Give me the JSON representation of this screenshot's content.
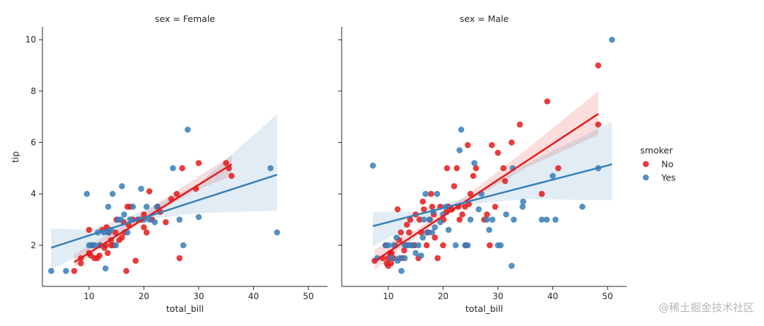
{
  "chart_data": {
    "type": "scatter",
    "y_label": "tip",
    "y_lim": [
      0.4,
      10.5
    ],
    "y_ticks": [
      2,
      4,
      6,
      8,
      10
    ],
    "x_lim": [
      1.5,
      53.5
    ],
    "x_ticks": [
      10,
      20,
      30,
      40,
      50
    ],
    "legend": {
      "title": "smoker",
      "entries": [
        {
          "label": "No",
          "color": "#e41a1c"
        },
        {
          "label": "Yes",
          "color": "#377eb8"
        }
      ],
      "position": "right"
    },
    "facets": [
      {
        "title": "sex = Female",
        "x_label": "total_bill",
        "series": [
          {
            "name": "No",
            "color": "#e41a1c",
            "points": [
              [
                7.3,
                1
              ],
              [
                8.5,
                1.3
              ],
              [
                8.5,
                1.5
              ],
              [
                10,
                1.7
              ],
              [
                10,
                2.6
              ],
              [
                10.3,
                1.6
              ],
              [
                10.5,
                2
              ],
              [
                11,
                1.5
              ],
              [
                11.5,
                1.5
              ],
              [
                11.9,
                1.6
              ],
              [
                12,
                2
              ],
              [
                12.4,
                2.6
              ],
              [
                12.8,
                1.9
              ],
              [
                13,
                2
              ],
              [
                13.2,
                2.7
              ],
              [
                13.4,
                1.7
              ],
              [
                13.6,
                2.5
              ],
              [
                14,
                2
              ],
              [
                14,
                2.2
              ],
              [
                14.5,
                2
              ],
              [
                14.8,
                2.5
              ],
              [
                15,
                3
              ],
              [
                15.5,
                2.2
              ],
              [
                16,
                2.3
              ],
              [
                16.3,
                2.9
              ],
              [
                16.5,
                2.5
              ],
              [
                16.8,
                1
              ],
              [
                17,
                3.5
              ],
              [
                17.2,
                2.8
              ],
              [
                17.5,
                3.5
              ],
              [
                18,
                3
              ],
              [
                18.5,
                1.4
              ],
              [
                18.9,
                3
              ],
              [
                19.5,
                3
              ],
              [
                20,
                3.2
              ],
              [
                20,
                2.7
              ],
              [
                20.5,
                2.5
              ],
              [
                21,
                4.1
              ],
              [
                21.5,
                3
              ],
              [
                22.5,
                3.5
              ],
              [
                23,
                3.3
              ],
              [
                24,
                2.9
              ],
              [
                25,
                3.8
              ],
              [
                26,
                4
              ],
              [
                26.5,
                1.5
              ],
              [
                27,
                5
              ],
              [
                29.5,
                4.2
              ],
              [
                30,
                5.2
              ],
              [
                35,
                5.2
              ],
              [
                35.5,
                5
              ],
              [
                36,
                4.7
              ]
            ],
            "fit": {
              "x_range": [
                7.3,
                36
              ],
              "slope": 0.1327,
              "intercept": 0.375
            },
            "ci": [
              [
                7.3,
                1.15,
                1.65
              ],
              [
                15,
                2.3,
                2.6
              ],
              [
                22,
                3.2,
                3.55
              ],
              [
                29,
                4.1,
                4.55
              ],
              [
                36,
                4.7,
                5.5
              ]
            ]
          },
          {
            "name": "Yes",
            "color": "#377eb8",
            "points": [
              [
                3.1,
                1
              ],
              [
                5.8,
                1
              ],
              [
                9.6,
                4
              ],
              [
                10,
                2
              ],
              [
                10.6,
                2
              ],
              [
                11,
                2
              ],
              [
                11.6,
                2.5
              ],
              [
                12,
                2
              ],
              [
                12.7,
                2.5
              ],
              [
                13,
                1.1
              ],
              [
                13.5,
                3.5
              ],
              [
                13.5,
                2.5
              ],
              [
                14,
                2.6
              ],
              [
                14.3,
                4
              ],
              [
                14.9,
                2
              ],
              [
                15.3,
                3
              ],
              [
                15.8,
                3
              ],
              [
                16,
                4.3
              ],
              [
                16.4,
                3.2
              ],
              [
                17,
                2.5
              ],
              [
                17.5,
                3
              ],
              [
                18,
                3.5
              ],
              [
                19,
                3
              ],
              [
                19.5,
                4.2
              ],
              [
                20,
                3
              ],
              [
                20.5,
                3.5
              ],
              [
                21,
                3
              ],
              [
                22,
                2.9
              ],
              [
                22.4,
                3.5
              ],
              [
                25.3,
                5
              ],
              [
                26.5,
                3
              ],
              [
                27.2,
                2
              ],
              [
                28,
                6.5
              ],
              [
                30,
                3.1
              ],
              [
                43.1,
                5
              ],
              [
                44.3,
                2.5
              ]
            ],
            "fit": {
              "x_range": [
                3.1,
                44.3
              ],
              "slope": 0.069,
              "intercept": 1.69
            },
            "ci": [
              [
                3.1,
                1.05,
                2.65
              ],
              [
                10,
                1.8,
                2.6
              ],
              [
                20,
                3.0,
                3.35
              ],
              [
                30,
                3.25,
                4.4
              ],
              [
                44.3,
                3.35,
                7.1
              ]
            ]
          }
        ]
      },
      {
        "title": "sex = Male",
        "x_label": "total_bill",
        "series": [
          {
            "name": "No",
            "color": "#e41a1c",
            "points": [
              [
                7.5,
                1.4
              ],
              [
                9,
                1.5
              ],
              [
                9.5,
                2
              ],
              [
                9.7,
                1.3
              ],
              [
                10,
                1.5
              ],
              [
                10,
                1.2
              ],
              [
                10.3,
                1.7
              ],
              [
                10.5,
                1.3
              ],
              [
                10.6,
                1.7
              ],
              [
                11,
                1.5
              ],
              [
                11.3,
                2
              ],
              [
                11.7,
                3.4
              ],
              [
                12,
                2.2
              ],
              [
                12.3,
                2.5
              ],
              [
                12.5,
                1.5
              ],
              [
                12.9,
                1.8
              ],
              [
                13.3,
                2
              ],
              [
                13.4,
                2.8
              ],
              [
                13.8,
                2.5
              ],
              [
                14,
                3
              ],
              [
                14.5,
                2
              ],
              [
                14.8,
                2
              ],
              [
                15,
                3.2
              ],
              [
                15.5,
                1.5
              ],
              [
                15.7,
                3
              ],
              [
                16,
                2.5
              ],
              [
                16.3,
                3.7
              ],
              [
                16.5,
                3.4
              ],
              [
                17,
                2
              ],
              [
                17.3,
                2.5
              ],
              [
                17.6,
                3
              ],
              [
                17.8,
                4
              ],
              [
                18,
                3.5
              ],
              [
                18.3,
                3.2
              ],
              [
                18.5,
                2.3
              ],
              [
                19,
                1.5
              ],
              [
                19.5,
                3.5
              ],
              [
                20,
                2
              ],
              [
                20.1,
                3
              ],
              [
                20.6,
                3.3
              ],
              [
                20.7,
                5
              ],
              [
                21,
                3.5
              ],
              [
                21.6,
                3.4
              ],
              [
                22,
                4.3
              ],
              [
                22.5,
                5
              ],
              [
                22.8,
                3.5
              ],
              [
                23,
                3
              ],
              [
                23.5,
                3.2
              ],
              [
                24,
                3.5
              ],
              [
                24.2,
                2
              ],
              [
                24.5,
                5.9
              ],
              [
                24.7,
                3.6
              ],
              [
                25,
                4
              ],
              [
                25.5,
                4.7
              ],
              [
                26,
                5
              ],
              [
                27.5,
                3
              ],
              [
                28,
                3.2
              ],
              [
                28.5,
                2
              ],
              [
                28.9,
                5.9
              ],
              [
                29.5,
                3.5
              ],
              [
                30,
                5.6
              ],
              [
                31,
                5
              ],
              [
                31.3,
                4.5
              ],
              [
                32.5,
                6
              ],
              [
                34,
                6.7
              ],
              [
                39,
                7.6
              ],
              [
                38,
                4
              ],
              [
                41,
                5
              ],
              [
                48.3,
                9
              ],
              [
                48.3,
                6.7
              ]
            ],
            "fit": {
              "x_range": [
                7.5,
                48.3
              ],
              "slope": 0.1405,
              "intercept": 0.328
            },
            "ci": [
              [
                7.5,
                1.05,
                1.85
              ],
              [
                15,
                2.3,
                2.6
              ],
              [
                25,
                3.75,
                4.05
              ],
              [
                35,
                5,
                5.7
              ],
              [
                48.3,
                6.3,
                8
              ]
            ]
          },
          {
            "name": "Yes",
            "color": "#377eb8",
            "points": [
              [
                7.2,
                5.1
              ],
              [
                8,
                1.5
              ],
              [
                9.5,
                2
              ],
              [
                10,
                2
              ],
              [
                10.6,
                1.5
              ],
              [
                11,
                2
              ],
              [
                11.5,
                2.3
              ],
              [
                11.7,
                1.4
              ],
              [
                12,
                1.5
              ],
              [
                12.4,
                1
              ],
              [
                13,
                2
              ],
              [
                13,
                1.5
              ],
              [
                13.5,
                2
              ],
              [
                14,
                2
              ],
              [
                14.4,
                2
              ],
              [
                15,
                1.7
              ],
              [
                15.5,
                2
              ],
              [
                16,
                1.6
              ],
              [
                16.3,
                2.3
              ],
              [
                16.5,
                3
              ],
              [
                16.8,
                4
              ],
              [
                17,
                2.5
              ],
              [
                17.5,
                3
              ],
              [
                18,
                2.5
              ],
              [
                18.2,
                3.3
              ],
              [
                18.5,
                2.7
              ],
              [
                18.9,
                4
              ],
              [
                19.5,
                2.9
              ],
              [
                20,
                3.2
              ],
              [
                20.5,
                3.5
              ],
              [
                21,
                2.6
              ],
              [
                22.3,
                2
              ],
              [
                23,
                5.7
              ],
              [
                23.3,
                6.5
              ],
              [
                24,
                2
              ],
              [
                24.5,
                2
              ],
              [
                25,
                3
              ],
              [
                25.7,
                5.2
              ],
              [
                26.5,
                3.4
              ],
              [
                27,
                4
              ],
              [
                28,
                3
              ],
              [
                28.4,
                2.6
              ],
              [
                29,
                3
              ],
              [
                30,
                2
              ],
              [
                30.5,
                2
              ],
              [
                31.5,
                3.2
              ],
              [
                32.5,
                1.2
              ],
              [
                32.7,
                5
              ],
              [
                32.9,
                3
              ],
              [
                34.5,
                3.5
              ],
              [
                34.6,
                3.7
              ],
              [
                38,
                3
              ],
              [
                38.9,
                3
              ],
              [
                40,
                4.7
              ],
              [
                40.5,
                3
              ],
              [
                45.4,
                3.5
              ],
              [
                48.3,
                5
              ],
              [
                50.8,
                10
              ]
            ],
            "fit": {
              "x_range": [
                7.2,
                50.8
              ],
              "slope": 0.0551,
              "intercept": 2.35
            },
            "ci": [
              [
                7.2,
                1.95,
                3.3
              ],
              [
                15,
                2.9,
                3.3
              ],
              [
                25,
                3.6,
                3.9
              ],
              [
                35,
                3.8,
                5.15
              ],
              [
                50.8,
                3.75,
                6.8
              ]
            ]
          }
        ]
      }
    ]
  },
  "watermark": "@稀土掘金技术社区"
}
